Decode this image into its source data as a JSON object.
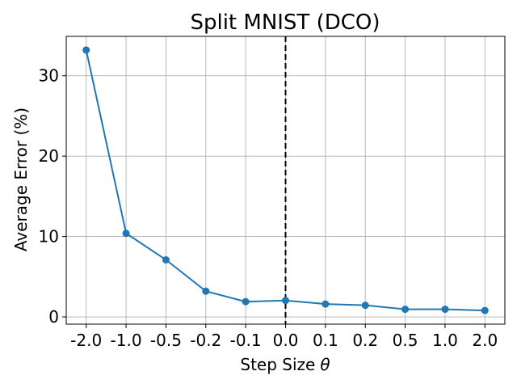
{
  "chart_data": {
    "type": "line",
    "title": "Split MNIST (DCO)",
    "xlabel": "Step Size",
    "xlabel_symbol": "θ",
    "ylabel": "Average Error (%)",
    "categories": [
      "-2.0",
      "-1.0",
      "-0.5",
      "-0.2",
      "-0.1",
      "0.0",
      "0.1",
      "0.2",
      "0.5",
      "1.0",
      "2.0"
    ],
    "series": [
      {
        "values": [
          33.2,
          10.4,
          7.1,
          3.2,
          1.9,
          2.05,
          1.6,
          1.45,
          0.95,
          0.95,
          0.8
        ],
        "color": "#1f77b4"
      }
    ],
    "ylim": [
      -0.9,
      34.9
    ],
    "yticks": [
      "0",
      "10",
      "20",
      "30"
    ],
    "grid": true,
    "reference_line": {
      "x": "0.0",
      "style": "dashed",
      "color": "#000000"
    }
  }
}
